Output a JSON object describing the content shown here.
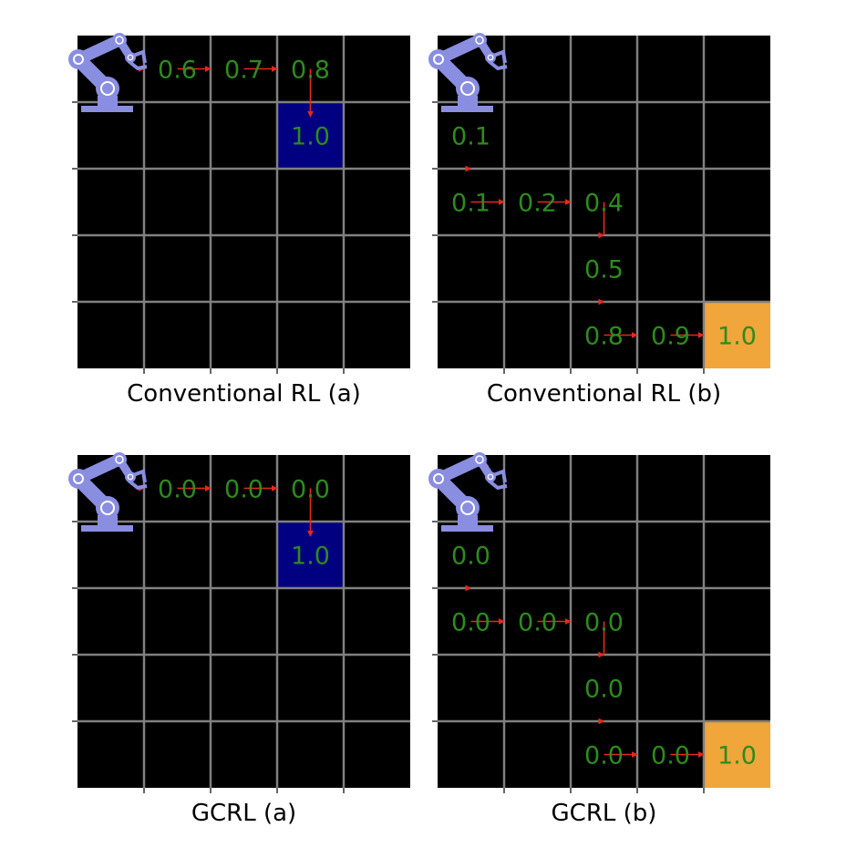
{
  "figure": {
    "grid_size": 5,
    "colors": {
      "background": "#000000",
      "grid_line": "#808080",
      "value_text": "#2e8b1e",
      "arrow": "#e8271b",
      "goal_a": "#000080",
      "goal_b": "#f0a63a",
      "robot": "#8a8ee0",
      "robot_joint": "#ffffff",
      "axis_tick": "#000000"
    },
    "robot_icon": "robot-arm-icon",
    "panels": [
      {
        "caption": "Conventional RL (a)",
        "goal": {
          "row": 1,
          "col": 3,
          "color": "goal_a",
          "value": "1.0"
        },
        "path": [
          [
            0,
            0
          ],
          [
            0,
            1
          ],
          [
            0,
            2
          ],
          [
            0,
            3
          ],
          [
            1,
            3
          ]
        ],
        "values": [
          {
            "row": 0,
            "col": 1,
            "text": "0.6"
          },
          {
            "row": 0,
            "col": 2,
            "text": "0.7"
          },
          {
            "row": 0,
            "col": 3,
            "text": "0.8"
          }
        ]
      },
      {
        "caption": "Conventional RL (b)",
        "goal": {
          "row": 4,
          "col": 4,
          "color": "goal_b",
          "value": "1.0"
        },
        "path": [
          [
            0,
            0
          ],
          [
            1,
            0
          ],
          [
            2,
            0
          ],
          [
            2,
            1
          ],
          [
            2,
            2
          ],
          [
            3,
            2
          ],
          [
            4,
            2
          ],
          [
            4,
            3
          ],
          [
            4,
            4
          ]
        ],
        "values": [
          {
            "row": 1,
            "col": 0,
            "text": "0.1"
          },
          {
            "row": 2,
            "col": 0,
            "text": "0.1"
          },
          {
            "row": 2,
            "col": 1,
            "text": "0.2"
          },
          {
            "row": 2,
            "col": 2,
            "text": "0.4"
          },
          {
            "row": 3,
            "col": 2,
            "text": "0.5"
          },
          {
            "row": 4,
            "col": 2,
            "text": "0.8"
          },
          {
            "row": 4,
            "col": 3,
            "text": "0.9"
          }
        ]
      },
      {
        "caption": "GCRL (a)",
        "goal": {
          "row": 1,
          "col": 3,
          "color": "goal_a",
          "value": "1.0"
        },
        "path": [
          [
            0,
            0
          ],
          [
            0,
            1
          ],
          [
            0,
            2
          ],
          [
            0,
            3
          ],
          [
            1,
            3
          ]
        ],
        "values": [
          {
            "row": 0,
            "col": 1,
            "text": "0.0"
          },
          {
            "row": 0,
            "col": 2,
            "text": "0.0"
          },
          {
            "row": 0,
            "col": 3,
            "text": "0.0"
          }
        ]
      },
      {
        "caption": "GCRL (b)",
        "goal": {
          "row": 4,
          "col": 4,
          "color": "goal_b",
          "value": "1.0"
        },
        "path": [
          [
            0,
            0
          ],
          [
            1,
            0
          ],
          [
            2,
            0
          ],
          [
            2,
            1
          ],
          [
            2,
            2
          ],
          [
            3,
            2
          ],
          [
            4,
            2
          ],
          [
            4,
            3
          ],
          [
            4,
            4
          ]
        ],
        "values": [
          {
            "row": 1,
            "col": 0,
            "text": "0.0"
          },
          {
            "row": 2,
            "col": 0,
            "text": "0.0"
          },
          {
            "row": 2,
            "col": 1,
            "text": "0.0"
          },
          {
            "row": 2,
            "col": 2,
            "text": "0.0"
          },
          {
            "row": 3,
            "col": 2,
            "text": "0.0"
          },
          {
            "row": 4,
            "col": 2,
            "text": "0.0"
          },
          {
            "row": 4,
            "col": 3,
            "text": "0.0"
          }
        ]
      }
    ]
  }
}
